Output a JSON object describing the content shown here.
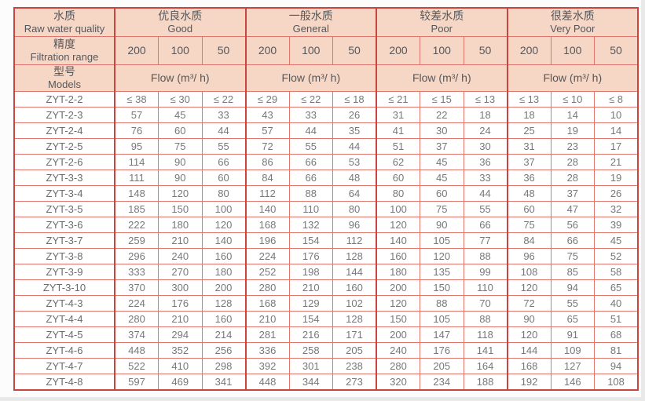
{
  "colors": {
    "border_strong": "#c9453f",
    "border_light": "#e0756d",
    "header_bg": "#f6d7c6",
    "header_text": "#57575a",
    "value_text": "#77787b",
    "model_text": "#6a6b6e",
    "page_bg": "#fcfcfc",
    "outer_bg": "#e9e9e9"
  },
  "table": {
    "col1": {
      "row1_zh": "水质",
      "row1_en": "Raw water quality",
      "row2_zh": "精度",
      "row2_en": "Filtration range",
      "row3_zh": "型号",
      "row3_en": "Models"
    },
    "quality_groups": [
      {
        "zh": "优良水质",
        "en": "Good"
      },
      {
        "zh": "一般水质",
        "en": "General"
      },
      {
        "zh": "较差水质",
        "en": "Poor"
      },
      {
        "zh": "很差水质",
        "en": "Very Poor"
      }
    ],
    "filtration_values": [
      "200",
      "100",
      "50"
    ],
    "flow_label": "Flow (m³/ h)",
    "rows": [
      {
        "model": "ZYT-2-2",
        "values": [
          "≤ 38",
          "≤ 30",
          "≤ 22",
          "≤ 29",
          "≤ 22",
          "≤ 18",
          "≤ 21",
          "≤ 15",
          "≤ 13",
          "≤ 13",
          "≤ 10",
          "≤ 8"
        ]
      },
      {
        "model": "ZYT-2-3",
        "values": [
          "57",
          "45",
          "33",
          "43",
          "33",
          "26",
          "31",
          "22",
          "18",
          "18",
          "14",
          "10"
        ]
      },
      {
        "model": "ZYT-2-4",
        "values": [
          "76",
          "60",
          "44",
          "57",
          "44",
          "35",
          "41",
          "30",
          "24",
          "25",
          "19",
          "14"
        ]
      },
      {
        "model": "ZYT-2-5",
        "values": [
          "95",
          "75",
          "55",
          "72",
          "55",
          "44",
          "51",
          "37",
          "30",
          "31",
          "23",
          "17"
        ]
      },
      {
        "model": "ZYT-2-6",
        "values": [
          "114",
          "90",
          "66",
          "86",
          "66",
          "53",
          "62",
          "45",
          "36",
          "37",
          "28",
          "21"
        ]
      },
      {
        "model": "ZYT-3-3",
        "values": [
          "111",
          "90",
          "60",
          "84",
          "66",
          "48",
          "60",
          "45",
          "33",
          "36",
          "28",
          "19"
        ]
      },
      {
        "model": "ZYT-3-4",
        "values": [
          "148",
          "120",
          "80",
          "112",
          "88",
          "64",
          "80",
          "60",
          "44",
          "48",
          "37",
          "26"
        ]
      },
      {
        "model": "ZYT-3-5",
        "values": [
          "185",
          "150",
          "100",
          "140",
          "110",
          "80",
          "100",
          "75",
          "55",
          "60",
          "47",
          "32"
        ]
      },
      {
        "model": "ZYT-3-6",
        "values": [
          "222",
          "180",
          "120",
          "168",
          "132",
          "96",
          "120",
          "90",
          "66",
          "75",
          "56",
          "39"
        ]
      },
      {
        "model": "ZYT-3-7",
        "values": [
          "259",
          "210",
          "140",
          "196",
          "154",
          "112",
          "140",
          "105",
          "77",
          "84",
          "66",
          "45"
        ]
      },
      {
        "model": "ZYT-3-8",
        "values": [
          "296",
          "240",
          "160",
          "224",
          "176",
          "128",
          "160",
          "120",
          "88",
          "96",
          "75",
          "52"
        ]
      },
      {
        "model": "ZYT-3-9",
        "values": [
          "333",
          "270",
          "180",
          "252",
          "198",
          "144",
          "180",
          "135",
          "99",
          "108",
          "85",
          "58"
        ]
      },
      {
        "model": "ZYT-3-10",
        "values": [
          "370",
          "300",
          "200",
          "280",
          "210",
          "160",
          "200",
          "150",
          "110",
          "120",
          "94",
          "65"
        ]
      },
      {
        "model": "ZYT-4-3",
        "values": [
          "224",
          "176",
          "128",
          "168",
          "129",
          "102",
          "120",
          "88",
          "70",
          "72",
          "55",
          "40"
        ]
      },
      {
        "model": "ZYT-4-4",
        "values": [
          "280",
          "210",
          "160",
          "210",
          "154",
          "128",
          "150",
          "105",
          "88",
          "90",
          "65",
          "51"
        ]
      },
      {
        "model": "ZYT-4-5",
        "values": [
          "374",
          "294",
          "214",
          "281",
          "216",
          "171",
          "200",
          "147",
          "118",
          "120",
          "91",
          "68"
        ]
      },
      {
        "model": "ZYT-4-6",
        "values": [
          "448",
          "352",
          "256",
          "336",
          "258",
          "205",
          "240",
          "176",
          "141",
          "144",
          "109",
          "81"
        ]
      },
      {
        "model": "ZYT-4-7",
        "values": [
          "522",
          "410",
          "298",
          "392",
          "301",
          "238",
          "280",
          "205",
          "164",
          "168",
          "127",
          "94"
        ]
      },
      {
        "model": "ZYT-4-8",
        "values": [
          "597",
          "469",
          "341",
          "448",
          "344",
          "273",
          "320",
          "234",
          "188",
          "192",
          "146",
          "108"
        ]
      }
    ]
  }
}
